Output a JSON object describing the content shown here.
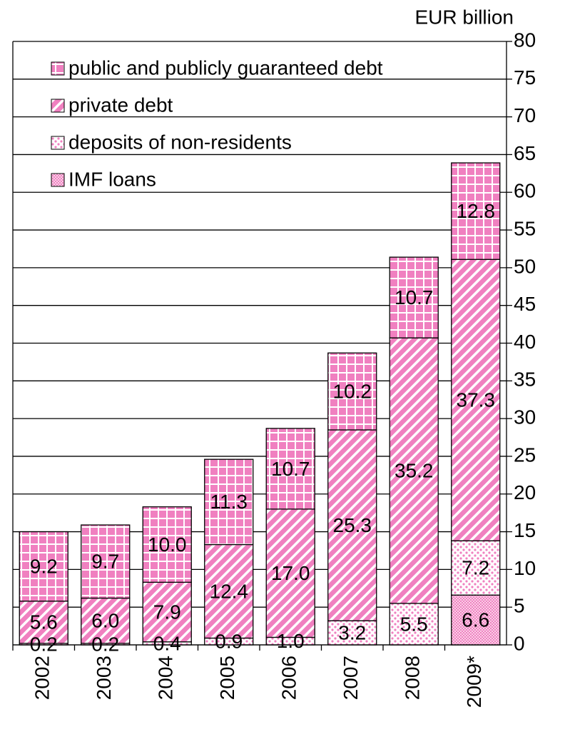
{
  "chart_data": {
    "type": "stacked_bar",
    "y_axis_label": "EUR billion",
    "categories": [
      "2002",
      "2003",
      "2004",
      "2005",
      "2006",
      "2007",
      "2008",
      "2009*"
    ],
    "series": [
      {
        "name": "IMF loans",
        "color": "#f080c0",
        "pattern": "crosshatch",
        "values": [
          null,
          null,
          null,
          null,
          null,
          null,
          null,
          6.6
        ],
        "value_labels": [
          null,
          null,
          null,
          null,
          null,
          null,
          null,
          "6.6"
        ]
      },
      {
        "name": "deposits of non-residents",
        "color": "#f080c0",
        "pattern": "dots",
        "values": [
          0.2,
          0.2,
          0.4,
          0.9,
          1.0,
          3.2,
          5.5,
          7.2
        ],
        "value_labels": [
          "0.2",
          "0.2",
          "0.4",
          "0.9",
          "1.0",
          "3.2",
          "5.5",
          "7.2"
        ]
      },
      {
        "name": "private debt",
        "color": "#f080c0",
        "pattern": "diagonal",
        "values": [
          5.6,
          6.0,
          7.9,
          12.4,
          17.0,
          25.3,
          35.2,
          37.3
        ],
        "value_labels": [
          "5.6",
          "6.0",
          "7.9",
          "12.4",
          "17.0",
          "25.3",
          "35.2",
          "37.3"
        ]
      },
      {
        "name": "public and publicly guaranteed debt",
        "color": "#f080c0",
        "pattern": "grid",
        "values": [
          9.2,
          9.7,
          10.0,
          11.3,
          10.7,
          10.2,
          10.7,
          12.8
        ],
        "value_labels": [
          "9.2",
          "9.7",
          "10.0",
          "11.3",
          "10.7",
          "10.2",
          "10.7",
          "12.8"
        ]
      }
    ],
    "ylim": [
      0,
      80
    ],
    "yticks": [
      0,
      5,
      10,
      15,
      20,
      25,
      30,
      35,
      40,
      45,
      50,
      55,
      60,
      65,
      70,
      75,
      80
    ],
    "y_axis_side": "right",
    "grid": true,
    "legend": "top-left"
  }
}
